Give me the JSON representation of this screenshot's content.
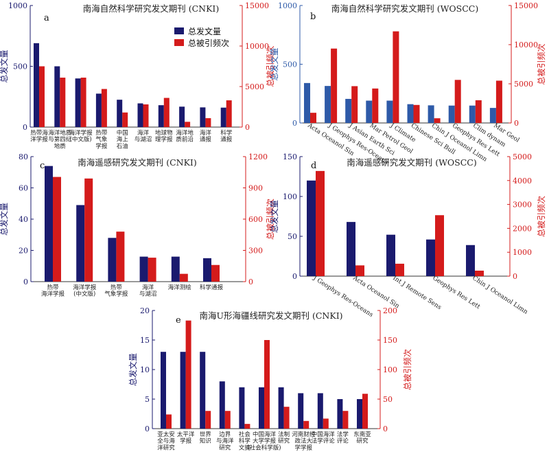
{
  "colors": {
    "publications": "#1a1a6e",
    "citations": "#d41b1b",
    "publications_b": "#2e5aa8",
    "left_axis": "#1a1a80",
    "right_axis": "#d41b1b"
  },
  "legend": {
    "publications_label": "总发文量",
    "citations_label": "总被引频次"
  },
  "chart_data": [
    {
      "type": "bar",
      "panel": "a",
      "title": "南海自然科学研究发文期刊 (CNKI)",
      "ylabel_left": "总发文量",
      "ylabel_right": "总被引频次",
      "ylim_left": [
        0,
        1000
      ],
      "ylim_right": [
        0,
        15000
      ],
      "yticks_left": [
        "0",
        "500",
        "1000"
      ],
      "yticks_right": [
        "0",
        "5000",
        "10000",
        "15000"
      ],
      "categories": [
        "热带海|洋学报",
        "海洋地质|与第四纪|地质",
        "海洋学报|(中文版)",
        "热带|气象|学报",
        "中国|海上|石油",
        "海洋|与湖沼",
        "地球物|理学报",
        "海洋地|质前沿",
        "海洋|通报",
        "科学|通报"
      ],
      "series": [
        {
          "name": "总发文量",
          "axis": "left",
          "values": [
            690,
            500,
            400,
            275,
            225,
            195,
            180,
            168,
            162,
            160
          ]
        },
        {
          "name": "总被引频次",
          "axis": "right",
          "values": [
            7500,
            6100,
            6100,
            4700,
            1800,
            2800,
            3600,
            650,
            1100,
            3300
          ]
        }
      ],
      "legend_position": "top-right"
    },
    {
      "type": "bar",
      "panel": "b",
      "title": "南海自然科学研究发文期刊 (WOSCC)",
      "ylabel_left": "总发文量",
      "ylabel_right": "总被引频次",
      "ylim_left": [
        0,
        1000
      ],
      "ylim_right": [
        0,
        15000
      ],
      "yticks_left": [
        "0",
        "500",
        "1000"
      ],
      "yticks_right": [
        "0",
        "5000",
        "10000",
        "15000"
      ],
      "categories": [
        "Acta Oceanol Sin",
        "J Geophys Res-Oceans",
        "J Asian Earth Sci",
        "Mar Petrol Geol",
        "J Climate",
        "Chinese Sci Bull",
        "Chin J Oceanol Limn",
        "Geophys Res Lett",
        "Clim dynam",
        "Mar Geol"
      ],
      "series": [
        {
          "name": "总发文量",
          "axis": "left",
          "values": [
            340,
            315,
            205,
            190,
            190,
            160,
            150,
            148,
            148,
            128
          ]
        },
        {
          "name": "总被引频次",
          "axis": "right",
          "values": [
            1300,
            9500,
            4700,
            4400,
            11700,
            2300,
            600,
            5500,
            2900,
            5400
          ]
        }
      ]
    },
    {
      "type": "bar",
      "panel": "c",
      "title": "南海遥感研究发文期刊 (CNKI)",
      "ylabel_left": "总发文量",
      "ylabel_right": "总被引频次",
      "ylim_left": [
        0,
        80
      ],
      "ylim_right": [
        0,
        1200
      ],
      "yticks_left": [
        "0",
        "20",
        "40",
        "60",
        "80"
      ],
      "yticks_right": [
        "0",
        "300",
        "600",
        "900",
        "1200"
      ],
      "categories": [
        "热带|海洋学报",
        "海洋学报|(中文版)",
        "热带|气象学报",
        "海洋|与湖沼",
        "海洋测绘",
        "科学通报"
      ],
      "series": [
        {
          "name": "总发文量",
          "axis": "left",
          "values": [
            74,
            49,
            28,
            16,
            16,
            15
          ]
        },
        {
          "name": "总被引频次",
          "axis": "right",
          "values": [
            1005,
            990,
            480,
            230,
            75,
            160
          ]
        }
      ]
    },
    {
      "type": "bar",
      "panel": "d",
      "title": "南海遥感研究发文期刊 (WOSCC)",
      "ylabel_left": "总发文量",
      "ylabel_right": "总被引频次",
      "ylim_left": [
        0,
        150
      ],
      "ylim_right": [
        0,
        5000
      ],
      "yticks_left": [
        "0",
        "50",
        "100",
        "150"
      ],
      "yticks_right": [
        "0",
        "1000",
        "2000",
        "3000",
        "4000",
        "5000"
      ],
      "categories": [
        "J Geophys Res-Oceans",
        "Acta Oceanol Sin",
        "Int J Remote Sens",
        "Geophys Res Lett",
        "Chin J Oceanol Limn"
      ],
      "series": [
        {
          "name": "总发文量",
          "axis": "left",
          "values": [
            120,
            68,
            52,
            46,
            39
          ]
        },
        {
          "name": "总被引频次",
          "axis": "right",
          "values": [
            4400,
            450,
            520,
            2550,
            230
          ]
        }
      ]
    },
    {
      "type": "bar",
      "panel": "e",
      "title": "南海U形海疆线研究发文期刊 (CNKI)",
      "ylabel_left": "总发文量",
      "ylabel_right": "总被引频次",
      "ylim_left": [
        0,
        20
      ],
      "ylim_right": [
        0,
        200
      ],
      "yticks_left": [
        "0",
        "5",
        "10",
        "15",
        "20"
      ],
      "yticks_right": [
        "0",
        "50",
        "100",
        "150",
        "200"
      ],
      "categories": [
        "亚太安|全与海|洋研究",
        "太平洋|学报",
        "世界|知识",
        "边界|与海洋|研究",
        "社会|科学|文摘",
        "中国海洋|大学学报|(社会科学版)",
        "法制|研究",
        "河南财经|政法大|学学报",
        "中国海洋|法学评论",
        "法学|评论",
        "东南亚|研究"
      ],
      "series": [
        {
          "name": "总发文量",
          "axis": "left",
          "values": [
            13,
            13,
            13,
            8,
            7,
            7,
            7,
            6,
            6,
            5,
            5
          ]
        },
        {
          "name": "总被引频次",
          "axis": "right",
          "values": [
            24,
            183,
            30,
            30,
            8,
            150,
            37,
            13,
            17,
            30,
            59
          ]
        }
      ]
    }
  ]
}
